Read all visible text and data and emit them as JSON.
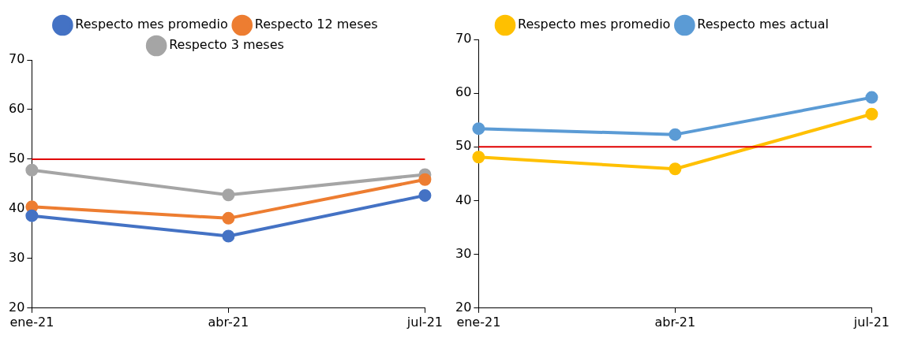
{
  "chart_data": [
    {
      "type": "line",
      "categories": [
        "ene-21",
        "abr-21",
        "jul-21"
      ],
      "series": [
        {
          "name": "Respecto mes promedio",
          "color": "#4472c4",
          "values": [
            38.6,
            34.5,
            42.7
          ]
        },
        {
          "name": "Respecto 12 meses",
          "color": "#ed7d31",
          "values": [
            40.4,
            38.1,
            45.9
          ]
        },
        {
          "name": "Respecto 3 meses",
          "color": "#a5a5a5",
          "values": [
            47.8,
            42.8,
            46.9
          ]
        }
      ],
      "ylim": [
        20,
        70
      ],
      "yticks": [
        20,
        30,
        40,
        50,
        60,
        70
      ],
      "ref_lines": [
        {
          "axis": "y",
          "value": 50,
          "color": "#e00000"
        }
      ],
      "legend": "top",
      "marker": "circle",
      "grid": false
    },
    {
      "type": "line",
      "categories": [
        "ene-21",
        "abr-21",
        "jul-21"
      ],
      "series": [
        {
          "name": "Respecto mes promedio",
          "color": "#ffc000",
          "values": [
            48.1,
            45.9,
            56.1
          ]
        },
        {
          "name": "Respecto mes actual",
          "color": "#5b9bd5",
          "values": [
            53.4,
            52.3,
            59.2
          ]
        }
      ],
      "ylim": [
        20,
        70
      ],
      "yticks": [
        20,
        30,
        40,
        50,
        60,
        70
      ],
      "ref_lines": [
        {
          "axis": "y",
          "value": 50,
          "color": "#e00000"
        }
      ],
      "legend": "top",
      "marker": "circle",
      "grid": false
    }
  ]
}
